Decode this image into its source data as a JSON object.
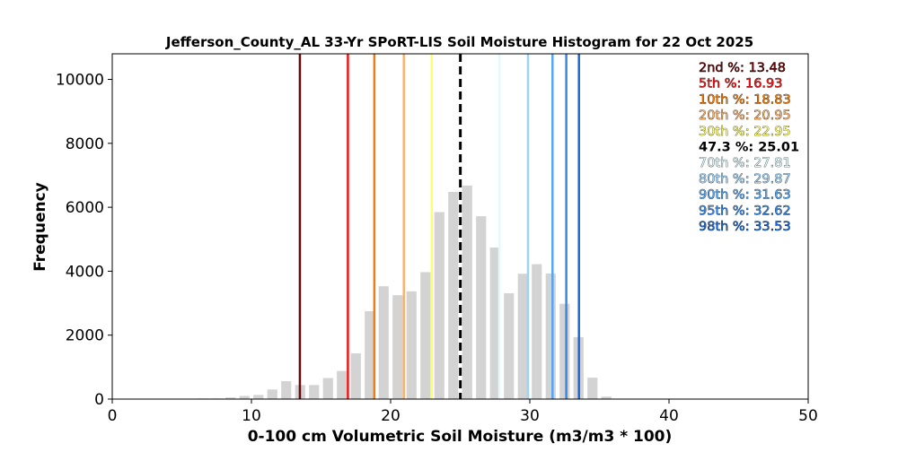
{
  "chart_data": {
    "type": "bar",
    "title": "Jefferson_County_AL 33-Yr SPoRT-LIS Soil Moisture Histogram for 22 Oct 2025",
    "xlabel": "0-100 cm Volumetric Soil Moisture (m3/m3 * 100)",
    "ylabel": "Frequency",
    "xlim": [
      0,
      50
    ],
    "ylim": [
      0,
      10800
    ],
    "xticks": [
      0,
      10,
      20,
      30,
      40,
      50
    ],
    "yticks": [
      0,
      2000,
      4000,
      6000,
      8000,
      10000
    ],
    "grid": false,
    "bar_color": "#d3d3d3",
    "bins": [
      6.5,
      7.5,
      8.5,
      9.5,
      10.5,
      11.5,
      12.5,
      13.5,
      14.5,
      15.5,
      16.5,
      17.5,
      18.5,
      19.5,
      20.5,
      21.5,
      22.5,
      23.5,
      24.5,
      25.5,
      26.5,
      27.5,
      28.5,
      29.5,
      30.5,
      31.5,
      32.5,
      33.5,
      34.5,
      35.5
    ],
    "values": [
      20,
      20,
      50,
      100,
      130,
      300,
      560,
      440,
      440,
      660,
      880,
      1430,
      2750,
      3530,
      3250,
      3370,
      3970,
      5850,
      6480,
      6680,
      5720,
      4740,
      3310,
      3920,
      4220,
      3930,
      2980,
      1940,
      670,
      80
    ],
    "percentiles": [
      {
        "label": "2nd %: 13.48",
        "value": 13.48,
        "color": "#640a0a",
        "dashed": false
      },
      {
        "label": "5th %: 16.93",
        "value": 16.93,
        "color": "#f51414",
        "dashed": false
      },
      {
        "label": "10th %: 18.83",
        "value": 18.83,
        "color": "#ee7c0e",
        "dashed": false
      },
      {
        "label": "20th %: 20.95",
        "value": 20.95,
        "color": "#fcb06a",
        "dashed": false
      },
      {
        "label": "30th %: 22.95",
        "value": 22.95,
        "color": "#ffff66",
        "dashed": false
      },
      {
        "label": "47.3 %: 25.01",
        "value": 25.01,
        "color": "#000000",
        "dashed": true
      },
      {
        "label": "70th %: 27.81",
        "value": 27.81,
        "color": "#e0fafe",
        "dashed": false
      },
      {
        "label": "80th %: 29.87",
        "value": 29.87,
        "color": "#9ed2f8",
        "dashed": false
      },
      {
        "label": "90th %: 31.63",
        "value": 31.63,
        "color": "#56a6f2",
        "dashed": false
      },
      {
        "label": "95th %: 32.62",
        "value": 32.62,
        "color": "#3888ea",
        "dashed": false
      },
      {
        "label": "98th %: 33.53",
        "value": 33.53,
        "color": "#1c66d6",
        "dashed": false
      }
    ],
    "legend_position": "top-right"
  }
}
